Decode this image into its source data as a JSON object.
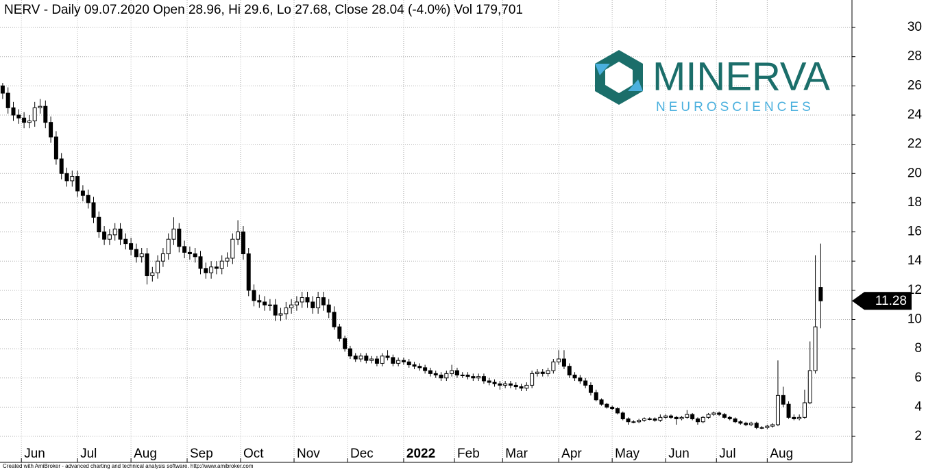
{
  "chart_data": {
    "type": "candlestick",
    "title": "NERV - Daily 09.07.2020 Open 28.96, Hi 29.6, Lo 27.68, Close 28.04 (-4.0%) Vol 179,701",
    "logo": {
      "name": "MINERVA",
      "tagline": "NEUROSCIENCES"
    },
    "credit": "Created with AmiBroker - advanced charting and technical analysis software. http://www.amibroker.com",
    "last_price": 11.28,
    "xlim": [
      0,
      318.7
    ],
    "ylim": [
      0.22,
      31.88
    ],
    "yticks": [
      2,
      4,
      6,
      8,
      10,
      12,
      14,
      16,
      18,
      20,
      22,
      24,
      26,
      28,
      30
    ],
    "xticks": [
      {
        "value": 8,
        "label": "Jun"
      },
      {
        "value": 29,
        "label": "Jul"
      },
      {
        "value": 49,
        "label": "Aug"
      },
      {
        "value": 70,
        "label": "Sep"
      },
      {
        "value": 90,
        "label": "Oct"
      },
      {
        "value": 110,
        "label": "Nov"
      },
      {
        "value": 130,
        "label": "Dec"
      },
      {
        "value": 151,
        "label": "2022"
      },
      {
        "value": 170,
        "label": "Feb"
      },
      {
        "value": 188,
        "label": "Mar"
      },
      {
        "value": 209,
        "label": "Apr"
      },
      {
        "value": 229,
        "label": "May"
      },
      {
        "value": 249,
        "label": "Jun"
      },
      {
        "value": 268,
        "label": "Jul"
      },
      {
        "value": 287,
        "label": "Aug"
      }
    ],
    "grid": true,
    "up_color": "#ffffff",
    "down_color": "#000000",
    "x": [
      1,
      3,
      5,
      7,
      9,
      11,
      13,
      15,
      17,
      19,
      21,
      23,
      25,
      27,
      29,
      31,
      33,
      35,
      37,
      39,
      41,
      43,
      45,
      47,
      49,
      51,
      53,
      55,
      57,
      59,
      61,
      63,
      65,
      67,
      69,
      71,
      73,
      75,
      77,
      79,
      81,
      83,
      85,
      87,
      89,
      91,
      93,
      95,
      97,
      99,
      101,
      103,
      105,
      107,
      109,
      111,
      113,
      115,
      117,
      119,
      121,
      123,
      125,
      127,
      129,
      131,
      133,
      135,
      137,
      139,
      141,
      143,
      145,
      147,
      149,
      151,
      153,
      155,
      157,
      159,
      161,
      163,
      165,
      167,
      169,
      171,
      173,
      175,
      177,
      179,
      181,
      183,
      185,
      187,
      189,
      191,
      193,
      195,
      197,
      199,
      201,
      203,
      205,
      207,
      209,
      211,
      213,
      215,
      217,
      219,
      221,
      223,
      225,
      227,
      229,
      231,
      233,
      235,
      237,
      239,
      241,
      243,
      245,
      247,
      249,
      251,
      253,
      255,
      257,
      259,
      261,
      263,
      265,
      267,
      269,
      271,
      273,
      275,
      277,
      279,
      281,
      283,
      285,
      287,
      289,
      291,
      293,
      295,
      297,
      299,
      301,
      303,
      305,
      307
    ],
    "open": [
      26,
      25.5,
      24.5,
      24,
      23.8,
      23.5,
      23.6,
      24.5,
      24.6,
      23.5,
      22.5,
      21,
      20,
      19.5,
      19.8,
      18.8,
      18.5,
      18,
      17,
      16,
      15.5,
      15.8,
      16.2,
      15.5,
      15.2,
      14.8,
      14.3,
      14.5,
      13,
      13.2,
      14,
      14.5,
      15.5,
      16.2,
      15,
      14.6,
      14.5,
      14.3,
      13.5,
      13.2,
      13.6,
      13.5,
      14,
      14.2,
      15.5,
      16,
      14.5,
      12,
      11.3,
      11.2,
      11,
      11,
      10.3,
      10.4,
      10.8,
      11,
      11.2,
      11.5,
      11.2,
      10.8,
      11.5,
      11,
      10.5,
      9.5,
      8.7,
      8,
      7.5,
      7.3,
      7.5,
      7.2,
      7.3,
      7,
      7.5,
      7.4,
      7,
      7.2,
      7.1,
      6.9,
      6.8,
      6.7,
      6.5,
      6.3,
      6.2,
      6,
      6.3,
      6.5,
      6.2,
      6.2,
      6.1,
      6,
      6.1,
      5.8,
      5.7,
      5.6,
      5.5,
      5.6,
      5.5,
      5.4,
      5.3,
      5.5,
      6.3,
      6.4,
      6.3,
      6.5,
      7.1,
      7.3,
      6.8,
      6.2,
      6,
      5.8,
      5.5,
      5,
      4.5,
      4.2,
      4,
      3.9,
      3.6,
      3.2,
      3,
      3,
      3.1,
      3.2,
      3.2,
      3.1,
      3.3,
      3.4,
      3.3,
      3.2,
      3.3,
      3.5,
      3.2,
      3,
      3.3,
      3.5,
      3.6,
      3.5,
      3.3,
      3.2,
      3,
      2.9,
      2.8,
      2.9,
      2.6,
      2.6,
      2.7,
      2.8,
      4.8,
      4.2,
      3.3,
      3.2,
      3.3,
      4.3,
      6.5,
      12.2
    ],
    "high": [
      26.2,
      25.9,
      24.9,
      24.4,
      24.2,
      24,
      24.9,
      25.1,
      25,
      23.9,
      22.9,
      21.4,
      20.4,
      20.2,
      20.2,
      19.2,
      18.9,
      18.4,
      17.4,
      16.4,
      16.2,
      16.6,
      16.6,
      15.9,
      15.6,
      15.2,
      14.9,
      14.9,
      13.6,
      14.4,
      14.9,
      15.9,
      17,
      16.6,
      15.4,
      15,
      14.9,
      14.7,
      13.9,
      14,
      14,
      14.4,
      14.6,
      15.9,
      16.8,
      16.4,
      14.9,
      12.4,
      11.7,
      11.6,
      11.4,
      11.4,
      10.8,
      11.2,
      11.4,
      11.6,
      11.9,
      11.9,
      11.6,
      11.9,
      11.9,
      11.4,
      10.9,
      9.7,
      8.9,
      8.2,
      7.7,
      7.7,
      7.7,
      7.5,
      7.5,
      7.7,
      7.9,
      7.6,
      7.4,
      7.4,
      7.3,
      7.1,
      7,
      6.9,
      6.7,
      6.5,
      6.4,
      6.5,
      6.9,
      6.7,
      6.4,
      6.4,
      6.3,
      6.3,
      6.3,
      6,
      5.9,
      5.8,
      5.8,
      5.8,
      5.7,
      5.6,
      5.7,
      6.5,
      6.6,
      6.6,
      6.7,
      7.3,
      7.9,
      7.9,
      7,
      6.4,
      6.2,
      6,
      5.7,
      5.2,
      4.6,
      4.3,
      4.1,
      4,
      3.7,
      3.3,
      3.1,
      3.2,
      3.3,
      3.3,
      3.3,
      3.5,
      3.5,
      3.5,
      3.4,
      3.4,
      3.8,
      3.6,
      3.3,
      3.4,
      3.6,
      3.7,
      3.7,
      3.6,
      3.4,
      3.3,
      3.1,
      3,
      3,
      3,
      2.7,
      2.8,
      2.9,
      7.2,
      5.4,
      4.4,
      3.5,
      3.5,
      5.2,
      8.5,
      14.4,
      15.2
    ],
    "low": [
      25.1,
      24.1,
      23.6,
      23.4,
      23.1,
      23.1,
      23.2,
      24.1,
      23.1,
      22.1,
      20.6,
      19.6,
      19.1,
      19.1,
      18.4,
      18.1,
      17.6,
      16.6,
      15.6,
      15.1,
      15.1,
      15.4,
      15.1,
      14.8,
      14.4,
      13.9,
      13.9,
      12.4,
      12.6,
      12.8,
      13.6,
      14.1,
      15.1,
      14.6,
      14.2,
      14.1,
      13.9,
      13.1,
      12.8,
      12.8,
      13.1,
      13.1,
      13.6,
      13.8,
      15.1,
      14.1,
      11.6,
      10.9,
      10.8,
      10.6,
      10.6,
      9.9,
      9.9,
      10,
      10.4,
      10.6,
      10.8,
      10.8,
      10.4,
      10.4,
      10.6,
      10.1,
      9.3,
      8.5,
      7.8,
      7.3,
      7.1,
      7.1,
      7,
      7,
      6.8,
      6.8,
      7.2,
      6.8,
      6.8,
      6.9,
      6.7,
      6.6,
      6.5,
      6.3,
      6.1,
      6,
      5.8,
      5.8,
      6.1,
      6,
      6,
      5.9,
      5.8,
      5.8,
      5.6,
      5.5,
      5.4,
      5.2,
      5.3,
      5.3,
      5.2,
      5.1,
      5.1,
      5.3,
      6.1,
      6.1,
      6.1,
      6.3,
      6.9,
      6.6,
      6,
      5.8,
      5.6,
      5.3,
      4.8,
      4.4,
      4.1,
      3.9,
      3.8,
      3.5,
      3.1,
      2.8,
      2.9,
      2.9,
      3,
      3.1,
      3,
      3,
      3.2,
      3.2,
      2.8,
      3.1,
      3.2,
      3.1,
      2.8,
      2.9,
      3.2,
      3.4,
      3.4,
      3.2,
      3.1,
      2.9,
      2.8,
      2.7,
      2.7,
      2.5,
      2.5,
      2.5,
      2.6,
      2.7,
      4,
      3.2,
      3.1,
      3.1,
      3.2,
      4.2,
      6.3,
      9.4
    ],
    "close": [
      25.5,
      24.5,
      24,
      23.8,
      23.5,
      23.6,
      24.5,
      24.6,
      23.5,
      22.5,
      21,
      20,
      19.5,
      19.8,
      18.8,
      18.5,
      18,
      17,
      16,
      15.5,
      15.8,
      16.2,
      15.5,
      15.2,
      14.8,
      14.3,
      14.5,
      13,
      13.2,
      14,
      14.5,
      15.5,
      16.2,
      15,
      14.6,
      14.5,
      14.3,
      13.5,
      13.2,
      13.6,
      13.5,
      14,
      14.2,
      15.5,
      16,
      14.5,
      12,
      11.3,
      11.2,
      11,
      11,
      10.3,
      10.4,
      10.8,
      11,
      11.2,
      11.5,
      11.2,
      10.8,
      11.5,
      11,
      10.5,
      9.5,
      8.7,
      8,
      7.5,
      7.3,
      7.5,
      7.2,
      7.3,
      7,
      7.5,
      7.4,
      7,
      7.2,
      7.1,
      6.9,
      6.8,
      6.7,
      6.5,
      6.3,
      6.2,
      6,
      6.3,
      6.5,
      6.2,
      6.2,
      6.1,
      6,
      6.1,
      5.8,
      5.7,
      5.6,
      5.5,
      5.6,
      5.5,
      5.4,
      5.3,
      5.5,
      6.3,
      6.4,
      6.3,
      6.5,
      7.1,
      7.3,
      6.8,
      6.2,
      6,
      5.8,
      5.5,
      5,
      4.5,
      4.2,
      4,
      3.9,
      3.6,
      3.2,
      3,
      3,
      3.1,
      3.2,
      3.2,
      3.1,
      3.3,
      3.4,
      3.3,
      3.2,
      3.3,
      3.5,
      3.2,
      3,
      3.3,
      3.5,
      3.6,
      3.5,
      3.3,
      3.2,
      3,
      2.9,
      2.8,
      2.9,
      2.6,
      2.6,
      2.7,
      2.8,
      4.8,
      4.2,
      3.3,
      3.2,
      3.3,
      4.3,
      6.5,
      9.5,
      11.28
    ]
  }
}
